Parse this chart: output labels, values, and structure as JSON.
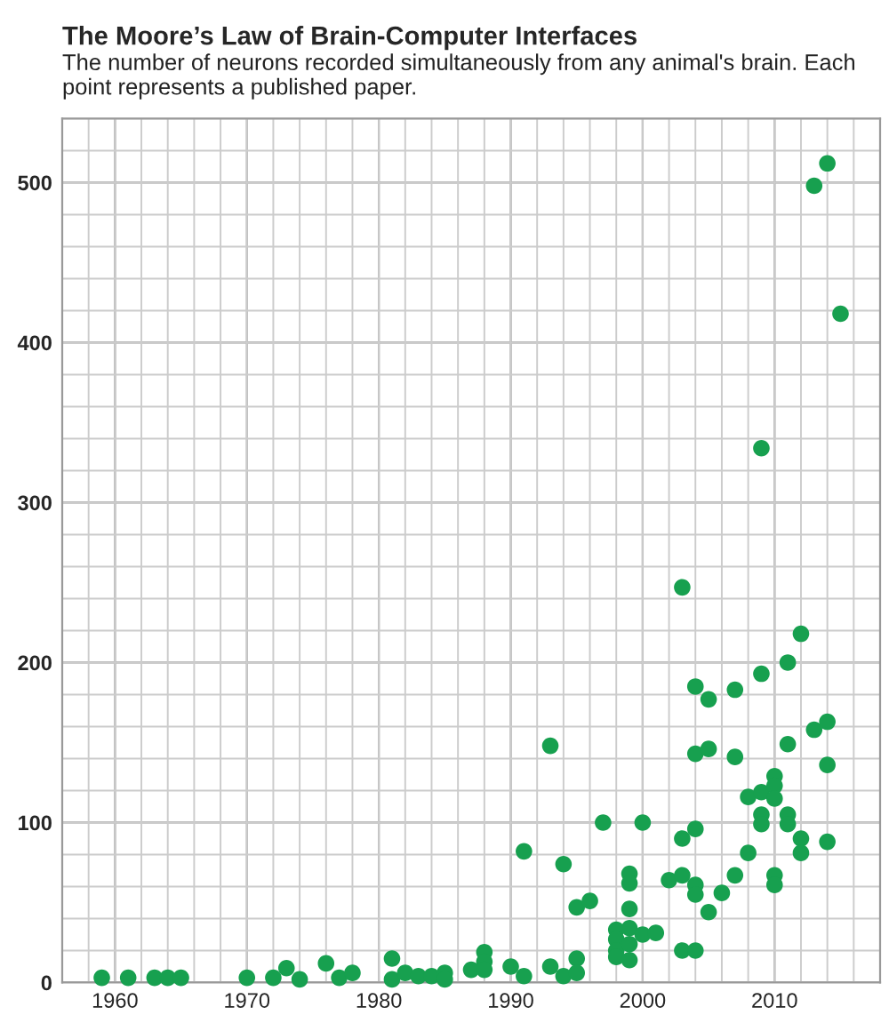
{
  "chart_data": {
    "type": "scatter",
    "title": "The Moore’s Law of Brain-Computer Interfaces",
    "subtitle": "The number of neurons recorded simultaneously from any animal's brain. Each point represents a published paper.",
    "x": [
      1959,
      1961,
      1963,
      1964,
      1965,
      1970,
      1972,
      1973,
      1974,
      1976,
      1977,
      1978,
      1981,
      1981,
      1982,
      1983,
      1984,
      1985,
      1985,
      1987,
      1988,
      1988,
      1988,
      1990,
      1991,
      1991,
      1993,
      1993,
      1994,
      1994,
      1995,
      1995,
      1995,
      1996,
      1997,
      1998,
      1998,
      1998,
      1998,
      1999,
      1999,
      1999,
      1999,
      1999,
      1999,
      2000,
      2000,
      2001,
      2002,
      2003,
      2003,
      2003,
      2003,
      2004,
      2004,
      2004,
      2004,
      2004,
      2004,
      2005,
      2005,
      2005,
      2006,
      2007,
      2007,
      2007,
      2008,
      2008,
      2009,
      2009,
      2009,
      2009,
      2009,
      2010,
      2010,
      2010,
      2010,
      2010,
      2011,
      2011,
      2011,
      2011,
      2012,
      2012,
      2012,
      2013,
      2013,
      2014,
      2014,
      2014,
      2014,
      2015
    ],
    "values": [
      3,
      3,
      3,
      3,
      3,
      3,
      3,
      9,
      2,
      12,
      3,
      6,
      15,
      2,
      6,
      4,
      4,
      6,
      2,
      8,
      19,
      13,
      8,
      10,
      4,
      82,
      148,
      10,
      74,
      4,
      15,
      6,
      47,
      51,
      100,
      33,
      27,
      20,
      16,
      68,
      62,
      46,
      34,
      24,
      14,
      100,
      30,
      31,
      64,
      247,
      90,
      67,
      20,
      20,
      185,
      143,
      96,
      61,
      55,
      177,
      146,
      44,
      56,
      183,
      141,
      67,
      116,
      81,
      193,
      119,
      105,
      99,
      334,
      129,
      123,
      115,
      67,
      61,
      149,
      200,
      105,
      99,
      218,
      90,
      81,
      158,
      498,
      163,
      136,
      88,
      512,
      418
    ],
    "color": "#17a04f",
    "marker": "circle",
    "xlim": [
      1956,
      2018
    ],
    "xticks": [
      {
        "value": 1956,
        "label": null
      },
      {
        "value": 1958,
        "label": null
      },
      1960,
      {
        "value": 1962,
        "label": null
      },
      {
        "value": 1964,
        "label": null
      },
      {
        "value": 1966,
        "label": null
      },
      {
        "value": 1968,
        "label": null
      },
      1970,
      {
        "value": 1972,
        "label": null
      },
      {
        "value": 1974,
        "label": null
      },
      {
        "value": 1976,
        "label": null
      },
      {
        "value": 1978,
        "label": null
      },
      1980,
      {
        "value": 1982,
        "label": null
      },
      {
        "value": 1984,
        "label": null
      },
      {
        "value": 1986,
        "label": null
      },
      {
        "value": 1988,
        "label": null
      },
      1990,
      {
        "value": 1992,
        "label": null
      },
      {
        "value": 1994,
        "label": null
      },
      {
        "value": 1996,
        "label": null
      },
      {
        "value": 1998,
        "label": null
      },
      2000,
      {
        "value": 2002,
        "label": null
      },
      {
        "value": 2004,
        "label": null
      },
      {
        "value": 2006,
        "label": null
      },
      {
        "value": 2008,
        "label": null
      },
      2010,
      {
        "value": 2012,
        "label": null
      },
      {
        "value": 2014,
        "label": null
      },
      {
        "value": 2016,
        "label": null
      },
      {
        "value": 2018,
        "label": null
      }
    ],
    "ylim": [
      0,
      540
    ],
    "yticks": [
      0,
      {
        "value": 20,
        "label": null
      },
      {
        "value": 40,
        "label": null
      },
      {
        "value": 60,
        "label": null
      },
      {
        "value": 80,
        "label": null
      },
      100,
      {
        "value": 120,
        "label": null
      },
      {
        "value": 140,
        "label": null
      },
      {
        "value": 160,
        "label": null
      },
      {
        "value": 180,
        "label": null
      },
      200,
      {
        "value": 220,
        "label": null
      },
      {
        "value": 240,
        "label": null
      },
      {
        "value": 260,
        "label": null
      },
      {
        "value": 280,
        "label": null
      },
      300,
      {
        "value": 320,
        "label": null
      },
      {
        "value": 340,
        "label": null
      },
      {
        "value": 360,
        "label": null
      },
      {
        "value": 380,
        "label": null
      },
      400,
      {
        "value": 420,
        "label": null
      },
      {
        "value": 440,
        "label": null
      },
      {
        "value": 460,
        "label": null
      },
      {
        "value": 480,
        "label": null
      },
      500,
      {
        "value": 520,
        "label": null
      },
      {
        "value": 540,
        "label": null
      }
    ],
    "grid": true
  }
}
